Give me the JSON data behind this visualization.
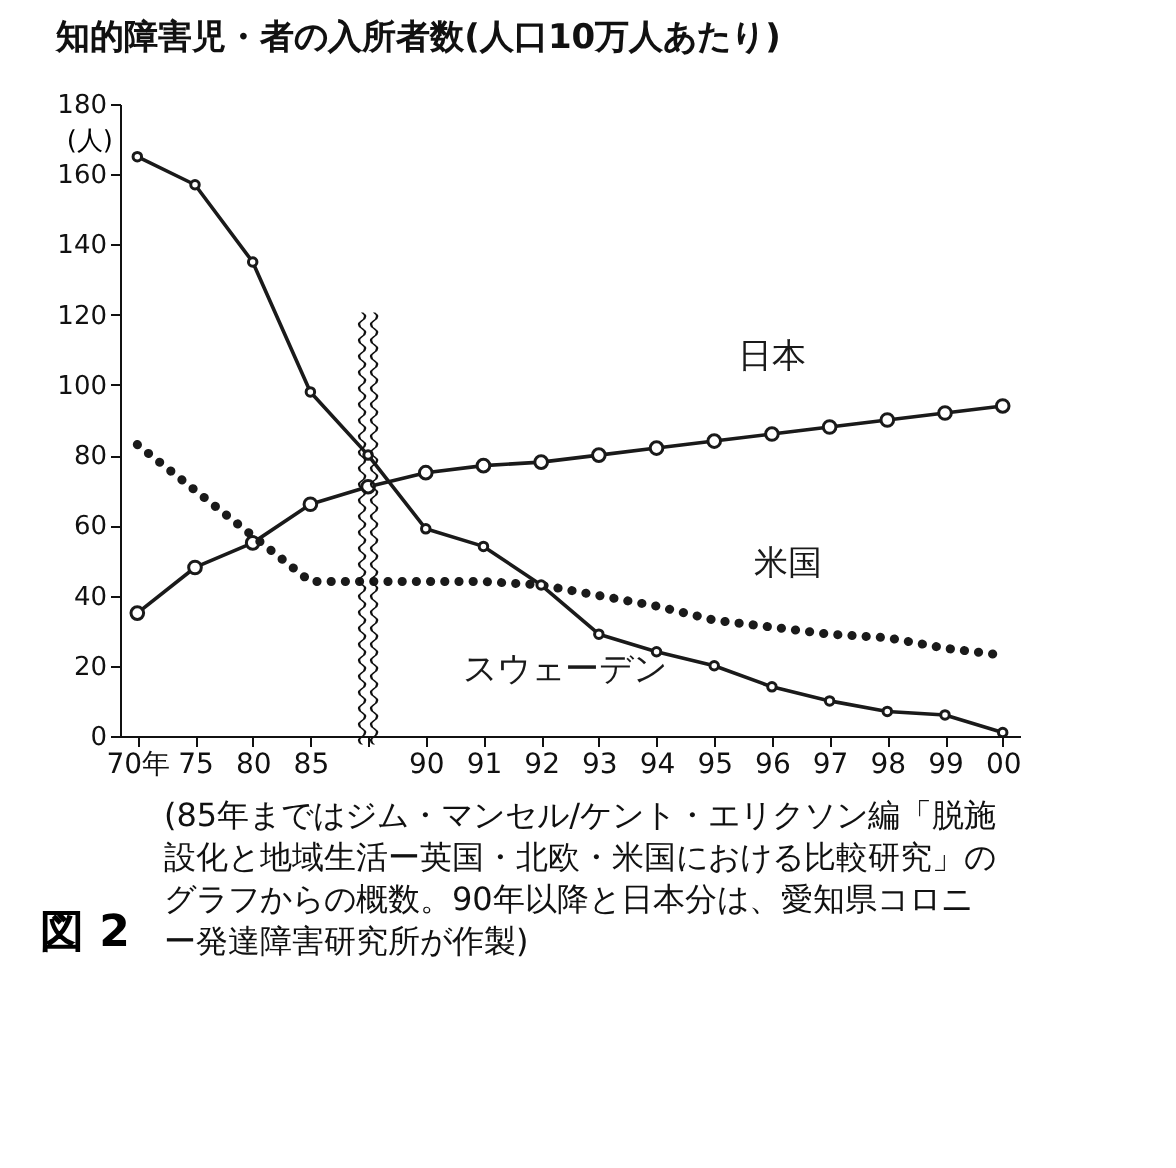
{
  "chart_data": {
    "type": "line",
    "title": "知的障害児・者の入所者数(人口10万人あたり)",
    "ylabel": "(人)",
    "categories": [
      "70年",
      "75",
      "80",
      "85",
      null,
      "90",
      "91",
      "92",
      "93",
      "94",
      "95",
      "96",
      "97",
      "98",
      "99",
      "00"
    ],
    "ylim": [
      0,
      180
    ],
    "yticks": [
      0,
      20,
      40,
      60,
      80,
      100,
      120,
      140,
      160,
      180
    ],
    "grid": false,
    "series": [
      {
        "name": "日本",
        "color": "#1a1a1a",
        "marker": "circle",
        "line_style": "solid",
        "values": [
          35,
          48,
          55,
          66,
          71,
          75,
          77,
          78,
          80,
          82,
          84,
          86,
          88,
          90,
          92,
          94
        ]
      },
      {
        "name": "米国",
        "color": "#1a1a1a",
        "marker": "none",
        "line_style": "dotted",
        "values": [
          83,
          70,
          57,
          44,
          44,
          44,
          44,
          43,
          40,
          37,
          33,
          31,
          29,
          28,
          25,
          23
        ]
      },
      {
        "name": "スウェーデン",
        "color": "#1a1a1a",
        "marker": "circle",
        "line_style": "solid",
        "values": [
          165,
          157,
          135,
          98,
          80,
          59,
          54,
          43,
          29,
          24,
          20,
          14,
          10,
          7,
          6,
          1
        ]
      }
    ],
    "annotations": [
      "(85年まではジム・マンセル/ケント・エリクソン編「脱施設化と地域生活ー英国・北欧・米国における比較研究」のグラフからの概数。90年以降と日本分は、愛知県コロニー発達障害研究所が作製)",
      "図 2"
    ]
  }
}
